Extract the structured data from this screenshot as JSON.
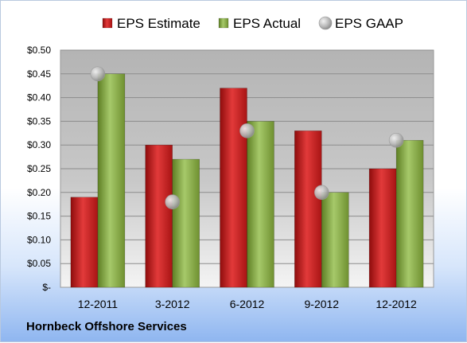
{
  "company": "Hornbeck Offshore Services",
  "chart_data": {
    "type": "bar",
    "categories": [
      "12-2011",
      "3-2012",
      "6-2012",
      "9-2012",
      "12-2012"
    ],
    "series": [
      {
        "name": "EPS Estimate",
        "kind": "bar",
        "color": "#cc1f1f",
        "values": [
          0.19,
          0.3,
          0.42,
          0.33,
          0.25
        ]
      },
      {
        "name": "EPS Actual",
        "kind": "bar",
        "color": "#8fb545",
        "values": [
          0.45,
          0.27,
          0.35,
          0.2,
          0.31
        ]
      },
      {
        "name": "EPS GAAP",
        "kind": "marker",
        "color": "#b8b8b8",
        "values": [
          0.45,
          0.18,
          0.33,
          0.2,
          0.31
        ]
      }
    ],
    "y_ticks": [
      "$-",
      "$0.05",
      "$0.10",
      "$0.15",
      "$0.20",
      "$0.25",
      "$0.30",
      "$0.35",
      "$0.40",
      "$0.45",
      "$0.50"
    ],
    "ylim": [
      0,
      0.5
    ],
    "grid": true,
    "legend_position": "top"
  }
}
